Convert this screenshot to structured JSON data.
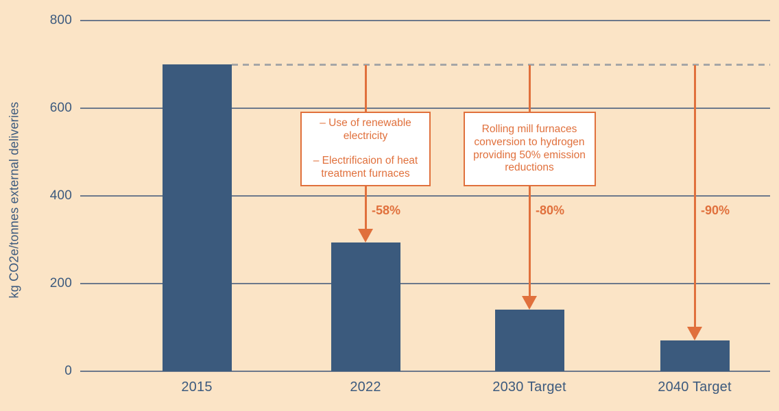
{
  "chart_data": {
    "type": "bar",
    "title": "",
    "ylabel": "kg CO2e/tonnes external deliveries",
    "xlabel": "",
    "categories": [
      "2015",
      "2022",
      "2030 Target",
      "2040 Target"
    ],
    "values": [
      700,
      294,
      140,
      70
    ],
    "ylim": [
      0,
      800
    ],
    "yticks": [
      800,
      600,
      400,
      200,
      0
    ],
    "grid": true,
    "legend": "none",
    "bar_color": "#3B5A7D",
    "accent_color": "#E0703C",
    "background_color": "#FBE4C6",
    "gridline_color": "#5C6B84",
    "axis_text_color": "#3C5A7E",
    "reference_line": {
      "value": 700,
      "style": "dashed",
      "color": "#A6A6A6",
      "note": "dashed gray line at 2015 level extending right"
    },
    "reduction_arrows": [
      {
        "category_index": 1,
        "label": "-58%"
      },
      {
        "category_index": 2,
        "label": "-80%"
      },
      {
        "category_index": 3,
        "label": "-90%"
      }
    ],
    "annotations": [
      {
        "category_index": 1,
        "paragraphs": [
          "– Use of renewable electricity",
          "– Electrificaion of heat treatment furnaces"
        ]
      },
      {
        "category_index": 2,
        "paragraphs": [
          "Rolling mill furnaces conversion to hydrogen providing 50% emission reductions"
        ]
      }
    ]
  }
}
